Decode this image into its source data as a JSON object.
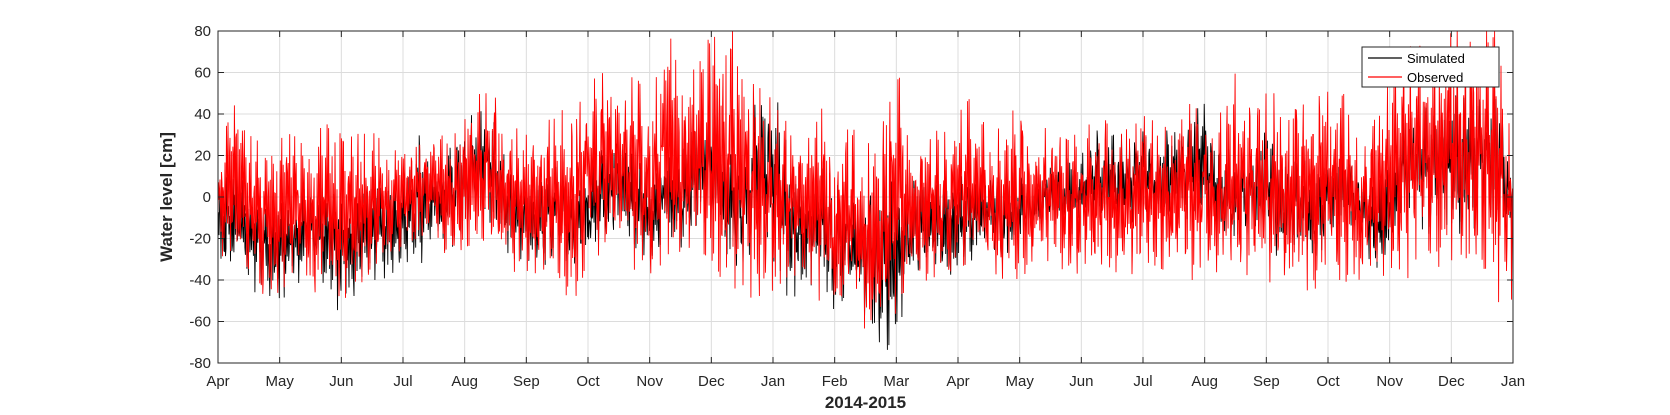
{
  "chart_data": {
    "type": "line",
    "title": "",
    "xlabel": "2014-2015",
    "ylabel": "Water level [cm]",
    "ylim": [
      -80,
      80
    ],
    "yticks": [
      -80,
      -60,
      -40,
      -20,
      0,
      20,
      40,
      60,
      80
    ],
    "xticks": [
      "Apr",
      "May",
      "Jun",
      "Jul",
      "Aug",
      "Sep",
      "Oct",
      "Nov",
      "Dec",
      "Jan",
      "Feb",
      "Mar",
      "Apr",
      "May",
      "Jun",
      "Jul",
      "Aug",
      "Sep",
      "Oct",
      "Nov",
      "Dec",
      "Jan"
    ],
    "grid": true,
    "legend_position": "top-right",
    "x_unit": "month index from Apr 2014",
    "series": [
      {
        "name": "Simulated",
        "color": "#000000",
        "envelope_x": [
          0,
          0.25,
          0.5,
          0.75,
          1.0,
          1.25,
          1.5,
          1.75,
          2.0,
          2.25,
          2.5,
          2.75,
          3.0,
          3.25,
          3.5,
          3.75,
          4.0,
          4.25,
          4.5,
          4.75,
          5.0,
          5.25,
          5.5,
          5.75,
          6.0,
          6.25,
          6.5,
          6.75,
          7.0,
          7.25,
          7.5,
          7.75,
          8.0,
          8.25,
          8.5,
          8.75,
          9.0,
          9.25,
          9.5,
          9.75,
          10.0,
          10.25,
          10.5,
          10.75,
          11.0,
          11.25,
          11.5,
          11.75,
          12.0,
          12.25,
          12.5,
          12.75,
          13.0,
          13.25,
          13.5,
          13.75,
          14.0,
          14.25,
          14.5,
          14.75,
          15.0,
          15.25,
          15.5,
          15.75,
          16.0,
          16.25,
          16.5,
          16.75,
          17.0,
          17.25,
          17.5,
          17.75,
          18.0,
          18.25,
          18.5,
          18.75,
          19.0,
          19.25,
          19.5,
          19.75,
          20.0,
          20.25,
          20.5,
          20.75,
          21.0
        ],
        "upper": [
          5,
          15,
          10,
          2,
          0,
          5,
          3,
          5,
          8,
          5,
          10,
          8,
          10,
          35,
          10,
          30,
          35,
          45,
          35,
          10,
          5,
          10,
          15,
          10,
          15,
          25,
          35,
          20,
          10,
          20,
          20,
          40,
          45,
          20,
          25,
          50,
          55,
          25,
          10,
          15,
          10,
          5,
          0,
          25,
          0,
          10,
          5,
          10,
          10,
          15,
          10,
          15,
          10,
          5,
          15,
          20,
          20,
          35,
          30,
          30,
          35,
          30,
          35,
          40,
          45,
          30,
          20,
          30,
          35,
          20,
          25,
          10,
          20,
          30,
          10,
          5,
          15,
          40,
          45,
          40,
          50,
          50,
          55,
          50,
          10
        ],
        "lower": [
          -40,
          -35,
          -40,
          -55,
          -50,
          -45,
          -30,
          -45,
          -60,
          -45,
          -40,
          -40,
          -30,
          -35,
          -20,
          -30,
          -15,
          -10,
          -15,
          -30,
          -30,
          -35,
          -25,
          -35,
          -30,
          -20,
          -15,
          -25,
          -30,
          -20,
          -30,
          -15,
          -10,
          -30,
          -35,
          -20,
          -30,
          -50,
          -45,
          -40,
          -55,
          -45,
          -60,
          -80,
          -65,
          -45,
          -30,
          -45,
          -35,
          -30,
          -20,
          -35,
          -25,
          -15,
          -10,
          -20,
          -15,
          -10,
          -20,
          -15,
          -10,
          -20,
          -15,
          -10,
          -10,
          -20,
          -30,
          -20,
          -25,
          -30,
          -30,
          -35,
          -20,
          -15,
          -20,
          -35,
          -30,
          -10,
          -15,
          -20,
          -15,
          -20,
          -10,
          -15,
          -20
        ]
      },
      {
        "name": "Observed",
        "color": "#ff0000",
        "envelope_x": [
          0,
          0.25,
          0.5,
          0.75,
          1.0,
          1.25,
          1.5,
          1.75,
          2.0,
          2.25,
          2.5,
          2.75,
          3.0,
          3.25,
          3.5,
          3.75,
          4.0,
          4.25,
          4.5,
          4.75,
          5.0,
          5.25,
          5.5,
          5.75,
          6.0,
          6.25,
          6.5,
          6.75,
          7.0,
          7.25,
          7.5,
          7.75,
          8.0,
          8.25,
          8.5,
          8.75,
          9.0,
          9.25,
          9.5,
          9.75,
          10.0,
          10.25,
          10.5,
          10.75,
          11.0,
          11.25,
          11.5,
          11.75,
          12.0,
          12.25,
          12.5,
          12.75,
          13.0,
          13.25,
          13.5,
          13.75,
          14.0,
          14.25,
          14.5,
          14.75,
          15.0,
          15.25,
          15.5,
          15.75,
          16.0,
          16.25,
          16.5,
          16.75,
          17.0,
          17.25,
          17.5,
          17.75,
          18.0,
          18.25,
          18.5,
          18.75,
          19.0,
          19.25,
          19.5,
          19.75,
          20.0,
          20.25,
          20.5,
          20.75,
          21.0
        ],
        "upper": [
          20,
          48,
          30,
          25,
          28,
          35,
          30,
          35,
          35,
          30,
          35,
          20,
          25,
          30,
          35,
          25,
          40,
          50,
          50,
          35,
          30,
          30,
          45,
          40,
          55,
          60,
          45,
          60,
          45,
          80,
          70,
          60,
          80,
          80,
          80,
          60,
          45,
          35,
          20,
          50,
          20,
          35,
          25,
          30,
          70,
          20,
          35,
          30,
          40,
          50,
          30,
          40,
          45,
          30,
          40,
          30,
          30,
          40,
          35,
          35,
          40,
          35,
          35,
          45,
          40,
          40,
          60,
          45,
          50,
          50,
          55,
          55,
          55,
          50,
          25,
          40,
          55,
          75,
          80,
          65,
          80,
          80,
          80,
          80,
          20
        ],
        "lower": [
          -30,
          -25,
          -35,
          -55,
          -45,
          -40,
          -50,
          -40,
          -50,
          -45,
          -35,
          -30,
          -25,
          -25,
          -20,
          -30,
          -25,
          -20,
          -25,
          -35,
          -40,
          -35,
          -35,
          -60,
          -35,
          -25,
          -20,
          -35,
          -45,
          -30,
          -40,
          -25,
          -30,
          -45,
          -50,
          -55,
          -45,
          -40,
          -35,
          -50,
          -60,
          -40,
          -65,
          -75,
          -55,
          -45,
          -40,
          -45,
          -35,
          -30,
          -35,
          -40,
          -40,
          -35,
          -30,
          -40,
          -40,
          -35,
          -35,
          -40,
          -30,
          -35,
          -35,
          -40,
          -40,
          -40,
          -45,
          -40,
          -40,
          -45,
          -45,
          -45,
          -40,
          -40,
          -45,
          -35,
          -40,
          -40,
          -35,
          -40,
          -35,
          -40,
          -40,
          -50,
          -60
        ]
      }
    ]
  }
}
